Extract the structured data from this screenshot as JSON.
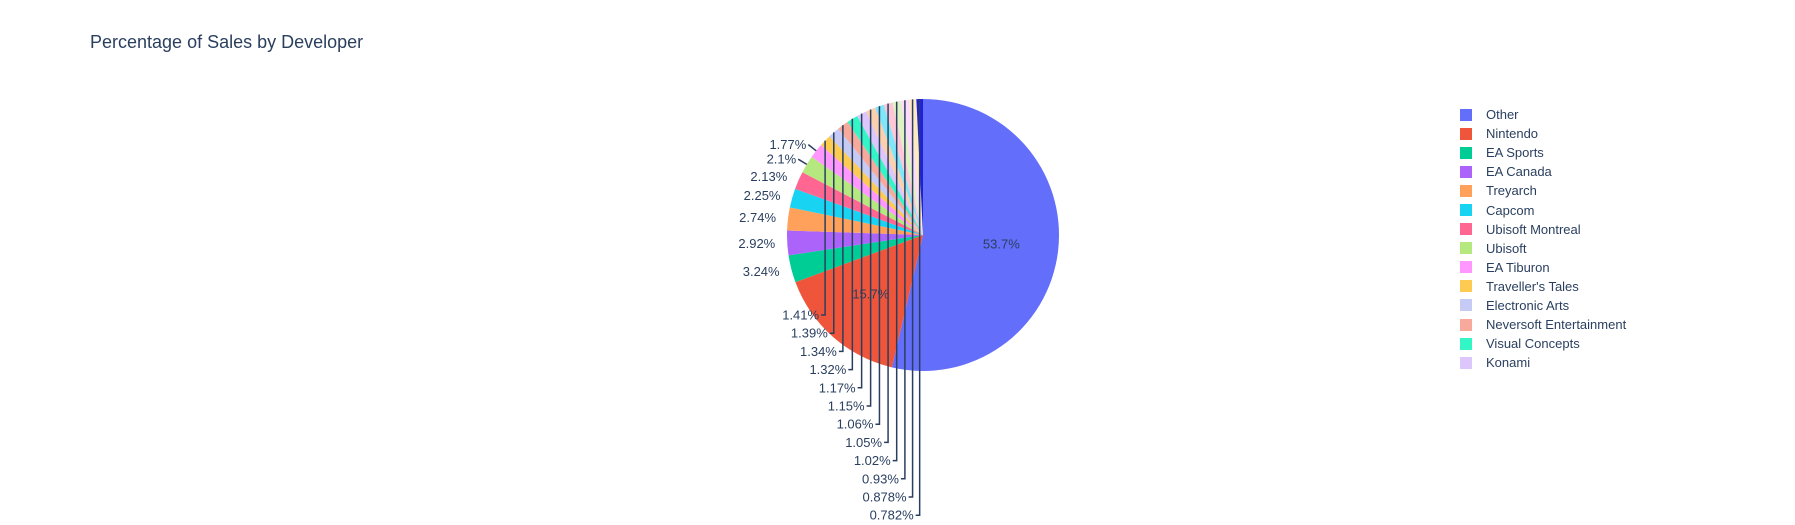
{
  "chart_data": {
    "type": "pie",
    "title": "Percentage of Sales by Developer",
    "legend_position": "right",
    "slices": [
      {
        "name": "Other",
        "value": 53.7,
        "label": "53.7%",
        "color": "#636efa"
      },
      {
        "name": "Nintendo",
        "value": 15.7,
        "label": "15.7%",
        "color": "#ef553b"
      },
      {
        "name": "EA Sports",
        "value": 3.24,
        "label": "3.24%",
        "color": "#00cc96"
      },
      {
        "name": "EA Canada",
        "value": 2.92,
        "label": "2.92%",
        "color": "#ab63fa"
      },
      {
        "name": "Treyarch",
        "value": 2.74,
        "label": "2.74%",
        "color": "#ffa15a"
      },
      {
        "name": "Capcom",
        "value": 2.25,
        "label": "2.25%",
        "color": "#19d3f3"
      },
      {
        "name": "Ubisoft Montreal",
        "value": 2.13,
        "label": "2.13%",
        "color": "#ff6692"
      },
      {
        "name": "Ubisoft",
        "value": 2.1,
        "label": "2.1%",
        "color": "#b6e880"
      },
      {
        "name": "EA Tiburon",
        "value": 1.77,
        "label": "1.77%",
        "color": "#ff97ff"
      },
      {
        "name": "Traveller's Tales",
        "value": 1.41,
        "label": "1.41%",
        "color": "#fecb52"
      },
      {
        "name": "Electronic Arts",
        "value": 1.39,
        "label": "1.39%",
        "color": "#c6cbf5"
      },
      {
        "name": "Neversoft Entertainment",
        "value": 1.34,
        "label": "1.34%",
        "color": "#f7a99c"
      },
      {
        "name": "Visual Concepts",
        "value": 1.32,
        "label": "1.32%",
        "color": "#33f5c6"
      },
      {
        "name": "Konami",
        "value": 1.17,
        "label": "1.17%",
        "color": "#dcc6fb"
      },
      {
        "name": "",
        "value": 1.15,
        "label": "1.15%",
        "color": "#fbd0ad"
      },
      {
        "name": "",
        "value": 1.06,
        "label": "1.06%",
        "color": "#7fe7f9"
      },
      {
        "name": "",
        "value": 1.05,
        "label": "1.05%",
        "color": "#fdc7d8"
      },
      {
        "name": "",
        "value": 1.02,
        "label": "1.02%",
        "color": "#dff2c4"
      },
      {
        "name": "",
        "value": 0.93,
        "label": "0.93%",
        "color": "#fdd9fd"
      },
      {
        "name": "",
        "value": 0.878,
        "label": "0.878%",
        "color": "#fdeac3"
      },
      {
        "name": "",
        "value": 0.782,
        "label": "0.782%",
        "color": "#1f1fe0"
      }
    ]
  }
}
